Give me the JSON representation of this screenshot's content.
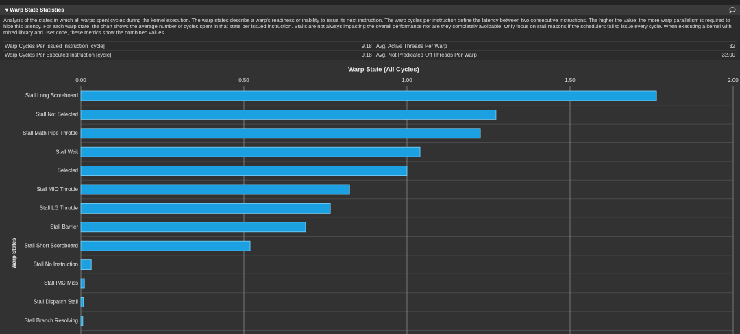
{
  "section": {
    "title": "Warp State Statistics",
    "description": "Analysis of the states in which all warps spent cycles during the kernel execution. The warp states describe a warp's readiness or inability to issue its next instruction. The warp cycles per instruction define the latency between two consecutive instructions. The higher the value, the more warp parallelism is required to hide this latency. For each warp state, the chart shows the average number of cycles spent in that state per issued instruction. Stalls are not always impacting the overall performance nor are they completely avoidable. Only focus on stall reasons if the schedulers fail to issue every cycle. When executing a kernel with mixed library and user code, these metrics show the combined values.",
    "metrics": {
      "rows": [
        [
          "Warp Cycles Per Issued Instruction [cycle]",
          "9.18",
          "Avg. Active Threads Per Warp",
          "32"
        ],
        [
          "Warp Cycles Per Executed Instruction [cycle]",
          "9.18",
          "Avg. Not Predicated Off Threads Per Warp",
          "32.00"
        ]
      ]
    }
  },
  "chart_data": {
    "type": "bar",
    "orientation": "horizontal",
    "title": "Warp State (All Cycles)",
    "ylabel": "Warp States",
    "categories": [
      "Stall Long Scoreboard",
      "Stall Not Selected",
      "Stall Math Pipe Throttle",
      "Stall Wait",
      "Selected",
      "Stall MIO Throttle",
      "Stall LG Throttle",
      "Stall Barrier",
      "Stall Short Scoreboard",
      "Stall No Instruction",
      "Stall IMC Miss",
      "Stall Dispatch Stall",
      "Stall Branch Resolving"
    ],
    "values": [
      1.765,
      1.273,
      1.225,
      1.04,
      1.0,
      0.824,
      0.765,
      0.689,
      0.519,
      0.032,
      0.011,
      0.008,
      0.006
    ],
    "color": "#1ba1e2",
    "xlim": [
      0,
      2
    ],
    "xticks": [
      {
        "value": 0,
        "label": "0.00"
      },
      {
        "value": 0.5,
        "label": "0.50"
      },
      {
        "value": 1,
        "label": "1.00"
      },
      {
        "value": 1.5,
        "label": "1.50"
      },
      {
        "value": 2,
        "label": "2.00"
      }
    ],
    "grid": true
  }
}
